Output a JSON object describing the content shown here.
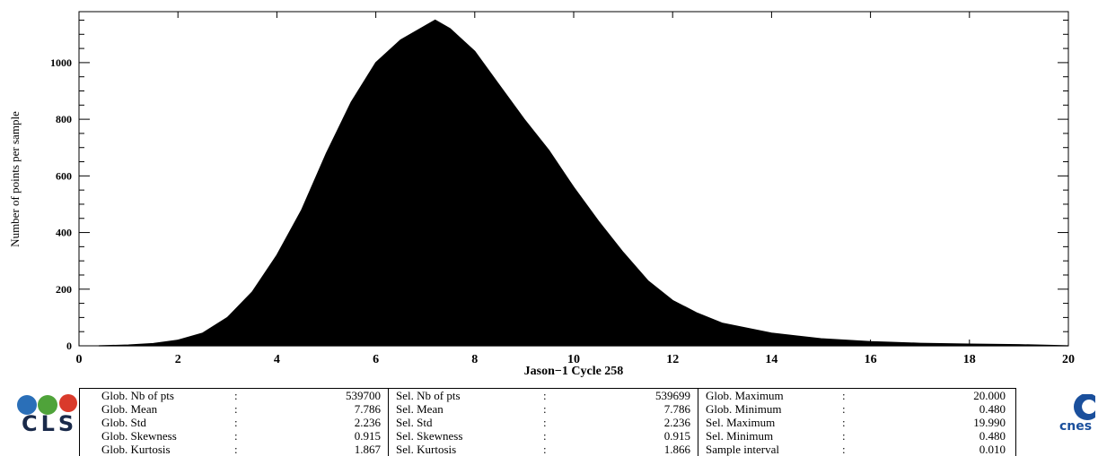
{
  "chart_data": {
    "type": "bar",
    "title": "",
    "xlabel": "Jason−1 Cycle 258",
    "ylabel": "Number of points per sample",
    "xlim": [
      0,
      20
    ],
    "ylim": [
      0,
      1180
    ],
    "x_ticks": [
      "0",
      "2",
      "4",
      "6",
      "8",
      "10",
      "12",
      "14",
      "16",
      "18",
      "20"
    ],
    "y_ticks": [
      "0",
      "200",
      "400",
      "600",
      "800",
      "1000"
    ],
    "bin_width": 0.01,
    "x": [
      0.4,
      1.0,
      1.5,
      2.0,
      2.5,
      3.0,
      3.5,
      4.0,
      4.5,
      5.0,
      5.5,
      6.0,
      6.5,
      7.0,
      7.2,
      7.5,
      8.0,
      8.5,
      9.0,
      9.5,
      10.0,
      10.5,
      11.0,
      11.5,
      12.0,
      12.5,
      13.0,
      14.0,
      15.0,
      16.0,
      17.0,
      18.0,
      19.0,
      20.0
    ],
    "values": [
      0,
      3,
      8,
      20,
      45,
      100,
      190,
      320,
      480,
      680,
      860,
      1000,
      1080,
      1130,
      1150,
      1120,
      1040,
      920,
      800,
      690,
      560,
      440,
      330,
      230,
      160,
      115,
      80,
      45,
      25,
      15,
      9,
      6,
      4,
      0
    ],
    "color": "#000000"
  },
  "stats": {
    "col1": [
      {
        "label": "Glob. Nb of pts",
        "colon": ":",
        "value": "539700"
      },
      {
        "label": "Glob. Mean",
        "colon": ":",
        "value": "7.786"
      },
      {
        "label": "Glob. Std",
        "colon": ":",
        "value": "2.236"
      },
      {
        "label": "Glob. Skewness",
        "colon": ":",
        "value": "0.915"
      },
      {
        "label": "Glob. Kurtosis",
        "colon": ":",
        "value": "1.867"
      }
    ],
    "col2": [
      {
        "label": "Sel. Nb of pts",
        "colon": ":",
        "value": "539699"
      },
      {
        "label": "Sel. Mean",
        "colon": ":",
        "value": "7.786"
      },
      {
        "label": "Sel. Std",
        "colon": ":",
        "value": "2.236"
      },
      {
        "label": "Sel. Skewness",
        "colon": ":",
        "value": "0.915"
      },
      {
        "label": "Sel. Kurtosis",
        "colon": ":",
        "value": "1.866"
      }
    ],
    "col3": [
      {
        "label": "Glob. Maximum",
        "colon": ":",
        "value": "20.000"
      },
      {
        "label": "Glob. Minimum",
        "colon": ":",
        "value": "0.480"
      },
      {
        "label": "Sel. Maximum",
        "colon": ":",
        "value": "19.990"
      },
      {
        "label": "Sel. Minimum",
        "colon": ":",
        "value": "0.480"
      },
      {
        "label": "Sample interval",
        "colon": ":",
        "value": "0.010"
      }
    ]
  },
  "logos": {
    "cls_text": "CLS",
    "cls_colors": [
      "#2a6fb8",
      "#4fa33a",
      "#d93a2b"
    ],
    "cnes_text": "cnes",
    "cnes_color": "#1a4f9c"
  }
}
